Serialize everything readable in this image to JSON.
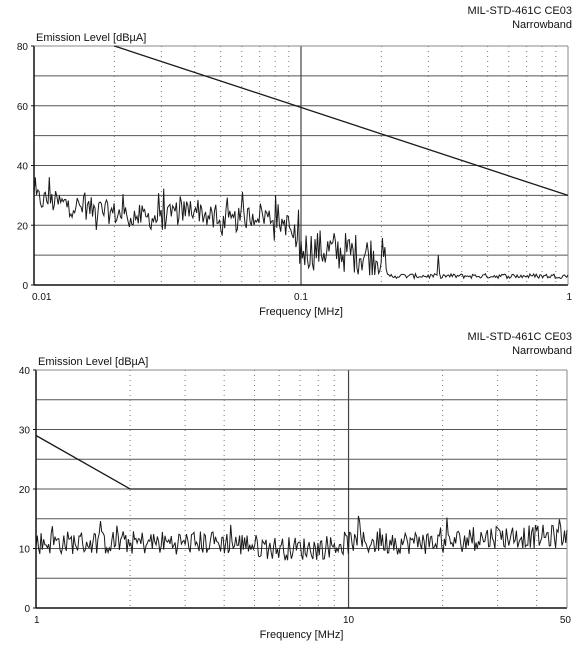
{
  "chart_data": [
    {
      "type": "line",
      "title": "MIL-STD-461C CE03",
      "subtitle": "Narrowband",
      "ylabel": "Emission Level [dBµA]",
      "xlabel": "Frequency [MHz]",
      "x_scale": "log",
      "xlim": [
        0.01,
        1
      ],
      "ylim": [
        0,
        80
      ],
      "x_ticks": [
        0.01,
        0.1,
        1
      ],
      "x_tick_labels": [
        "0.01",
        "0.1",
        "1"
      ],
      "y_ticks": [
        0,
        20,
        40,
        60,
        80
      ],
      "y_tick_labels": [
        "0",
        "20",
        "40",
        "60",
        "80"
      ],
      "grid": true,
      "series": [
        {
          "kind": "limit",
          "color": "#1a1a1a",
          "x": [
            0.02,
            1
          ],
          "y": [
            80,
            30
          ]
        },
        {
          "kind": "measured",
          "color": "#1a1a1a",
          "x": [
            0.01,
            0.02,
            0.03,
            0.04,
            0.05,
            0.07,
            0.09,
            0.1,
            0.12,
            0.15,
            0.2,
            0.21,
            0.3,
            0.5,
            0.7,
            1
          ],
          "y": [
            29,
            24,
            22,
            26,
            20,
            24,
            20,
            9,
            9,
            8,
            7,
            3,
            3,
            3,
            3,
            3
          ]
        }
      ]
    },
    {
      "type": "line",
      "title": "MIL-STD-461C CE03",
      "subtitle": "Narrowband",
      "ylabel": "Emission Level [dBµA]",
      "xlabel": "Frequency [MHz]",
      "x_scale": "log",
      "xlim": [
        1,
        50
      ],
      "ylim": [
        0,
        40
      ],
      "x_ticks": [
        1,
        10,
        50
      ],
      "x_tick_labels": [
        "1",
        "10",
        "50"
      ],
      "y_ticks": [
        0,
        10,
        20,
        30,
        40
      ],
      "y_tick_labels": [
        "0",
        "10",
        "20",
        "30",
        "40"
      ],
      "grid": true,
      "series": [
        {
          "kind": "limit",
          "color": "#1a1a1a",
          "x": [
            1,
            2,
            50
          ],
          "y": [
            29,
            20,
            20
          ]
        },
        {
          "kind": "measured",
          "color": "#1a1a1a",
          "x": [
            1,
            2,
            4,
            6,
            8,
            10,
            15,
            20,
            30,
            40,
            50
          ],
          "y": [
            11,
            11,
            11,
            10,
            10,
            11,
            11,
            11,
            12,
            12,
            12
          ]
        }
      ]
    }
  ]
}
